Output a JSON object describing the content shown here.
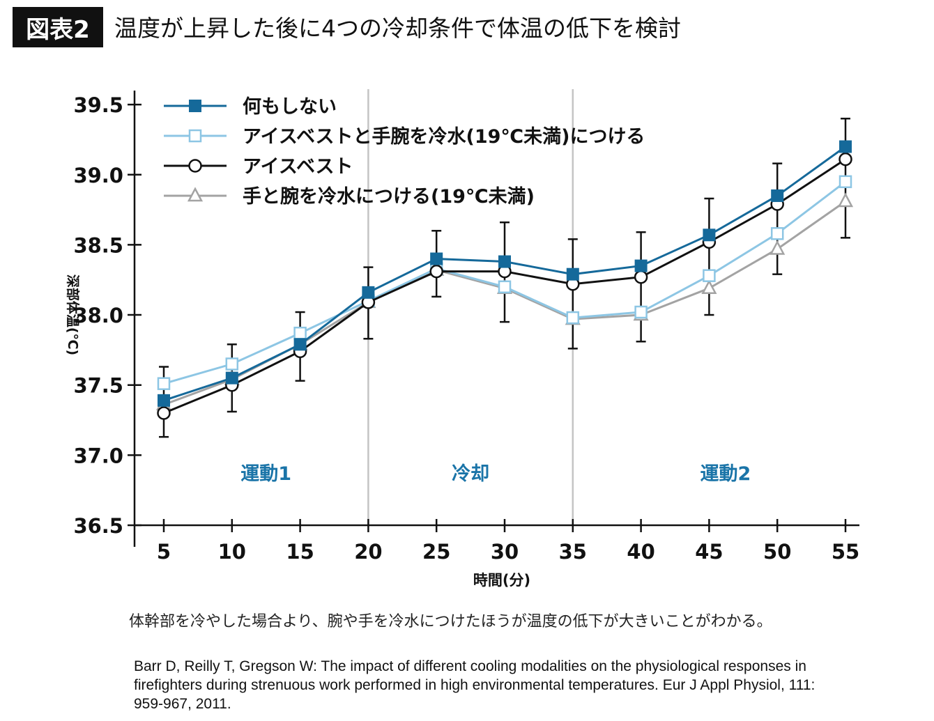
{
  "header": {
    "figure_label": "図表2",
    "title": "温度が上昇した後に4つの冷却条件で体温の低下を検討"
  },
  "caption": "体幹部を冷やした場合より、腕や手を冷水につけたほうが温度の低下が大きいことがわかる。",
  "citation": "Barr D, Reilly T, Gregson W: The impact of different cooling modalities on the physiological responses in firefighters during strenuous work performed in high environmental temperatures. Eur J Appl Physiol, 111: 959-967, 2011.",
  "chart_data": {
    "type": "line",
    "title": "温度が上昇した後に4つの冷却条件で体温の低下を検討",
    "xlabel": "時間(分)",
    "ylabel": "深部体温(℃)",
    "x": [
      5,
      10,
      15,
      20,
      25,
      30,
      35,
      40,
      45,
      50,
      55
    ],
    "x_ticks": [
      "5",
      "10",
      "15",
      "20",
      "25",
      "30",
      "35",
      "40",
      "45",
      "50",
      "55"
    ],
    "y_ticks": [
      "36.5",
      "37.0",
      "37.5",
      "38.0",
      "38.5",
      "39.0",
      "39.5"
    ],
    "ylim": [
      36.5,
      39.5
    ],
    "grid": false,
    "legend_position": "top-left",
    "phase_dividers": [
      20,
      35
    ],
    "phases": [
      {
        "label": "運動1",
        "center": 12.5
      },
      {
        "label": "冷却",
        "center": 27.5
      },
      {
        "label": "運動2",
        "center": 46.2
      }
    ],
    "series": [
      {
        "name": "何もしない",
        "marker": "square-filled",
        "color": "#15699a",
        "values": [
          37.39,
          37.55,
          37.79,
          38.16,
          38.4,
          38.38,
          38.29,
          38.35,
          38.57,
          38.85,
          39.2
        ]
      },
      {
        "name": "アイスベストと手腕を冷水(19℃未満)につける",
        "marker": "square-open",
        "color": "#8dc6e4",
        "values": [
          37.51,
          37.65,
          37.87,
          38.1,
          38.33,
          38.2,
          37.98,
          38.02,
          38.28,
          38.58,
          38.95
        ]
      },
      {
        "name": "アイスベスト",
        "marker": "circle-open",
        "color": "#111111",
        "values": [
          37.3,
          37.5,
          37.74,
          38.09,
          38.31,
          38.31,
          38.22,
          38.27,
          38.52,
          38.79,
          39.11
        ]
      },
      {
        "name": "手と腕を冷水につける(19℃未満)",
        "marker": "triangle-open",
        "color": "#a3a3a3",
        "values": [
          37.36,
          37.54,
          37.79,
          38.09,
          38.32,
          38.19,
          37.97,
          38.0,
          38.19,
          38.47,
          38.81
        ]
      }
    ],
    "error_bars": {
      "upper": [
        37.63,
        37.79,
        38.02,
        38.34,
        38.6,
        38.66,
        38.54,
        38.59,
        38.83,
        39.08,
        39.4
      ],
      "lower": [
        37.13,
        37.31,
        37.53,
        37.83,
        38.13,
        37.95,
        37.76,
        37.81,
        38.0,
        38.29,
        38.55
      ]
    }
  }
}
